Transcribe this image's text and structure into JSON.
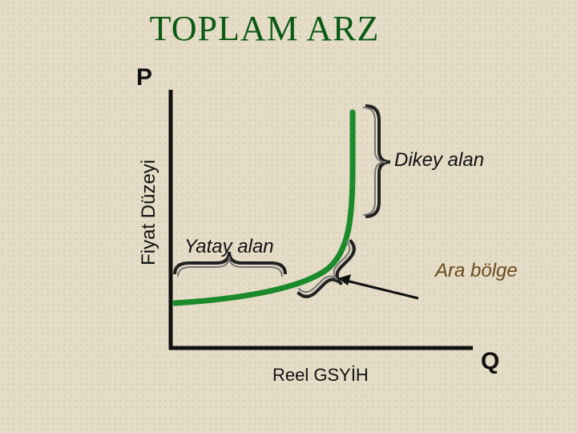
{
  "title": "TOPLAM ARZ",
  "axes": {
    "y_symbol": "P",
    "x_symbol": "Q",
    "y_label": "Fiyat Düzeyi",
    "x_label": "Reel GSYİH"
  },
  "regions": {
    "vertical": "Dikey alan",
    "horizontal": "Yatay alan",
    "intermediate": "Ara bölge"
  },
  "colors": {
    "title": "#0a5a14",
    "curve": "#1a8a2a",
    "axis": "#111111",
    "intermediate_label": "#6a4a1e"
  }
}
